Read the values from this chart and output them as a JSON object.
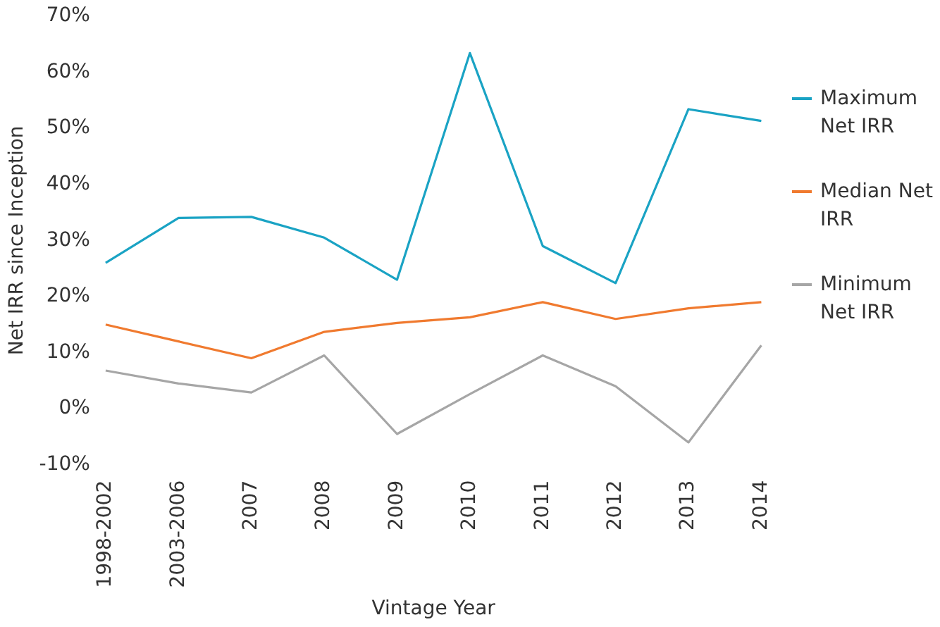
{
  "chart_data": {
    "type": "line",
    "xlabel": "Vintage Year",
    "ylabel": "Net IRR since Inception",
    "categories": [
      "1998-2002",
      "2003-2006",
      "2007",
      "2008",
      "2009",
      "2010",
      "2011",
      "2012",
      "2013",
      "2014"
    ],
    "ylim": [
      -10,
      70
    ],
    "yticks": [
      {
        "value": -10,
        "label": "-10%"
      },
      {
        "value": 0,
        "label": "0%"
      },
      {
        "value": 10,
        "label": "10%"
      },
      {
        "value": 20,
        "label": "20%"
      },
      {
        "value": 30,
        "label": "30%"
      },
      {
        "value": 40,
        "label": "40%"
      },
      {
        "value": 50,
        "label": "50%"
      },
      {
        "value": 60,
        "label": "60%"
      },
      {
        "value": 70,
        "label": "70%"
      }
    ],
    "grid": false,
    "legend": "right",
    "marker": "none",
    "line_style": "solid",
    "series": [
      {
        "name": "Maximum Net IRR",
        "color": "#1aa3c4",
        "values": [
          26,
          34,
          34.2,
          30.5,
          23,
          63.4,
          29,
          22.4,
          53.4,
          51.3
        ]
      },
      {
        "name": "Median Net IRR",
        "color": "#f07a2f",
        "values": [
          15,
          12,
          9,
          13.7,
          15.3,
          16.3,
          19,
          16,
          17.9,
          19
        ]
      },
      {
        "name": "Minimum Net IRR",
        "color": "#a6a6a6",
        "values": [
          6.8,
          4.5,
          2.9,
          9.5,
          -4.5,
          2.6,
          9.5,
          4,
          -6,
          11.3
        ]
      }
    ]
  }
}
